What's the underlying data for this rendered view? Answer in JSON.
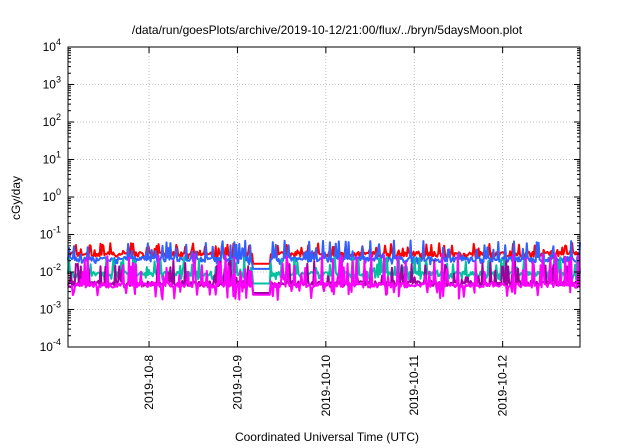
{
  "chart_data": {
    "type": "line",
    "title": "/data/run/goesPlots/archive/2019-10-12/21:00/flux/../bryn/5daysMoon.plot",
    "xlabel": "Coordinated Universal Time (UTC)",
    "ylabel": "cGy/day",
    "yscale": "log",
    "ylim": [
      0.0001,
      10000
    ],
    "xlim": [
      "2019-10-07T02:00",
      "2019-10-12T21:00"
    ],
    "grid": true,
    "legend": "none",
    "y_ticks": [
      {
        "base": "10",
        "exp": "-4",
        "value": 0.0001
      },
      {
        "base": "10",
        "exp": "-3",
        "value": 0.001
      },
      {
        "base": "10",
        "exp": "-2",
        "value": 0.01
      },
      {
        "base": "10",
        "exp": "-1",
        "value": 0.1
      },
      {
        "base": "10",
        "exp": "0",
        "value": 1
      },
      {
        "base": "10",
        "exp": "1",
        "value": 10
      },
      {
        "base": "10",
        "exp": "2",
        "value": 100
      },
      {
        "base": "10",
        "exp": "3",
        "value": 1000
      },
      {
        "base": "10",
        "exp": "4",
        "value": 10000
      }
    ],
    "x_ticks": [
      {
        "label": "2019-10-8",
        "value": "2019-10-08T00:00"
      },
      {
        "label": "2019-10-9",
        "value": "2019-10-09T00:00"
      },
      {
        "label": "2019-10-10",
        "value": "2019-10-10T00:00"
      },
      {
        "label": "2019-10-11",
        "value": "2019-10-11T00:00"
      },
      {
        "label": "2019-10-12",
        "value": "2019-10-12T00:00"
      }
    ],
    "series": [
      {
        "color": "#ff0000",
        "base": 0.03,
        "spike": 0.06,
        "low": 0.022
      },
      {
        "color": "#3060ff",
        "base": 0.022,
        "spike": 0.07,
        "low": 0.016
      },
      {
        "color": "#00c0a0",
        "base": 0.009,
        "spike": 0.025,
        "low": 0.006
      },
      {
        "color": "#a000a0",
        "base": 0.005,
        "spike": 0.02,
        "low": 0.0042
      },
      {
        "color": "#ff00ff",
        "base": 0.0045,
        "spike": 0.03,
        "low": 0.0018
      }
    ],
    "gap": {
      "start": "2019-10-09T04:00",
      "end": "2019-10-09T09:00"
    }
  }
}
